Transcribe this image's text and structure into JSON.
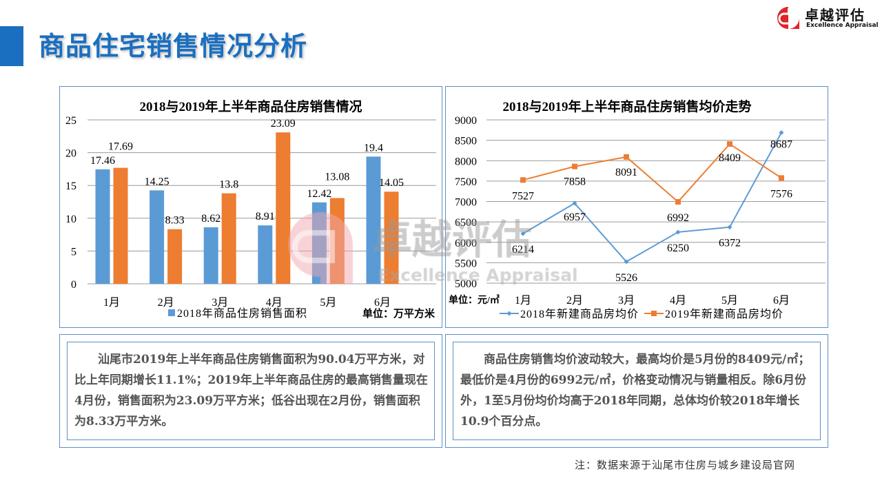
{
  "header": {
    "title": "商品住宅销售情况分析",
    "logo_cn": "卓越评估",
    "logo_en": "Excellence Appraisal",
    "brand_color": "#1a6fc0",
    "logo_color": "#e0242a"
  },
  "watermark": {
    "cn": "卓越评估",
    "en": "Excellence Appraisal"
  },
  "chart_data": [
    {
      "type": "bar",
      "title": "2018与2019年上半年商品住房销售情况",
      "categories": [
        "1月",
        "2月",
        "3月",
        "4月",
        "5月",
        "6月"
      ],
      "series": [
        {
          "name": "2018年商品住房销售面积",
          "values": [
            17.46,
            14.25,
            8.62,
            8.91,
            12.42,
            19.4
          ],
          "color": "#5b9bd5"
        },
        {
          "values": [
            17.69,
            8.33,
            13.8,
            23.09,
            13.08,
            14.05
          ],
          "color": "#ed7d31"
        }
      ],
      "ylim": [
        0,
        25
      ],
      "yticks": [
        0,
        5,
        10,
        15,
        20,
        25
      ],
      "grid": true,
      "unit_label": "单位：万平方米",
      "legend": "bottom"
    },
    {
      "type": "line",
      "title": "2018与2019年上半年商品住房销售均价走势",
      "categories": [
        "1月",
        "2月",
        "3月",
        "4月",
        "5月",
        "6月"
      ],
      "series": [
        {
          "name": "2018年新建商品房均价",
          "values": [
            6214,
            6957,
            5526,
            6250,
            6372,
            8687
          ],
          "color": "#5b9bd5",
          "marker": "diamond"
        },
        {
          "name": "2019年新建商品房均价",
          "values": [
            7527,
            7858,
            8091,
            6992,
            8409,
            7576
          ],
          "color": "#ed7d31",
          "marker": "square"
        }
      ],
      "ylim": [
        5000,
        9000
      ],
      "yticks": [
        5000,
        5500,
        6000,
        6500,
        7000,
        7500,
        8000,
        8500,
        9000
      ],
      "grid": true,
      "unit_label": "单位：元/㎡",
      "legend": "bottom"
    }
  ],
  "text_left": "汕尾市2019年上半年商品住房销售面积为90.04万平方米，对比上年同期增长11.1%；2019年上半年商品住房的最高销售量现在4月份，销售面积为23.09万平方米；低谷出现在2月份，销售面积为8.33万平方米。",
  "text_right": "商品住房销售均价波动较大，最高均价是5月份的8409元/㎡；最低价是4月份的6992元/㎡，价格变动情况与销量相反。除6月份外，1至5月份均价均高于2018年同期，总体均价较2018年增长10.9个百分点。",
  "note": "注：数据来源于汕尾市住房与城乡建设局官网"
}
